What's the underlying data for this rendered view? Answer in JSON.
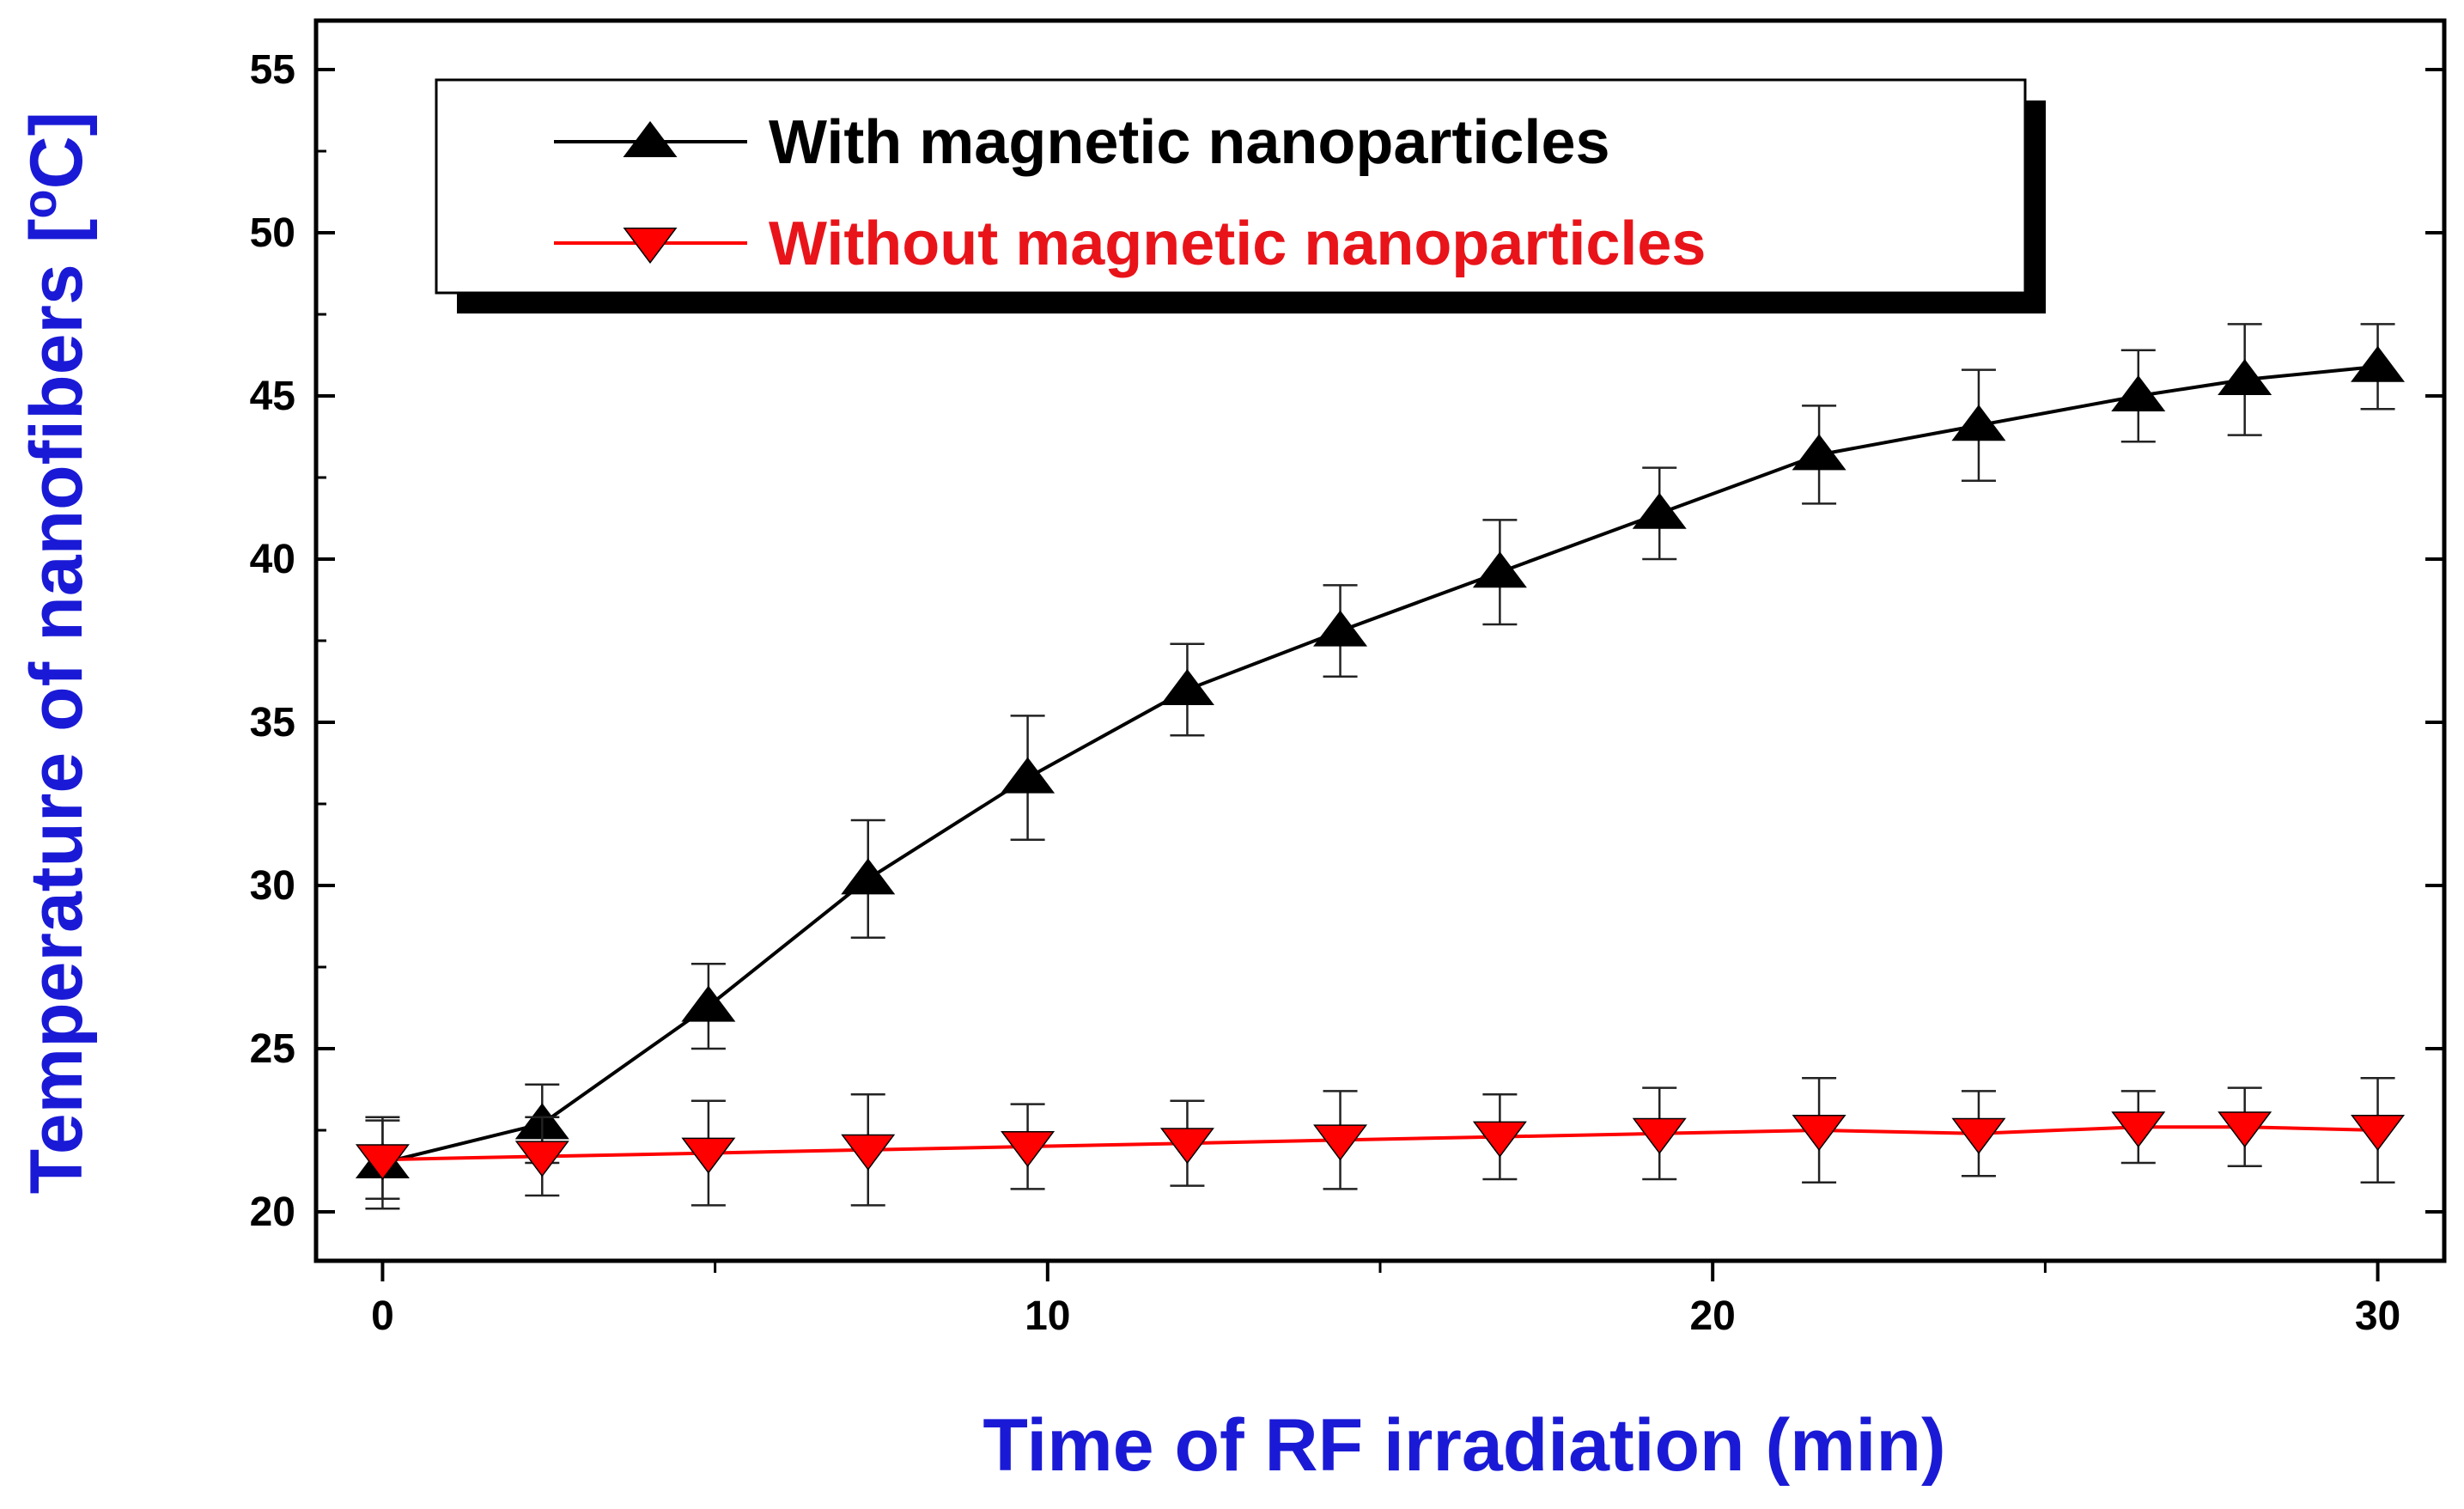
{
  "chart_data": {
    "type": "line",
    "xlabel": "Time of RF irradiation (min)",
    "ylabel_main": "Temperature of nanofibers [",
    "ylabel_sup": "o",
    "ylabel_end": "C]",
    "xlim": [
      -1,
      31
    ],
    "ylim": [
      18.5,
      56.5
    ],
    "xticks": [
      0,
      10,
      20,
      30
    ],
    "xticks_minor": [
      5,
      15,
      25
    ],
    "yticks": [
      20,
      25,
      30,
      35,
      40,
      45,
      50,
      55
    ],
    "series": [
      {
        "name": "With magnetic nanoparticles",
        "color": "#000000",
        "marker": "triangle-up",
        "x": [
          0,
          2.4,
          4.9,
          7.3,
          9.7,
          12.1,
          14.4,
          16.8,
          19.2,
          21.6,
          24.0,
          26.4,
          28.0,
          30.0
        ],
        "y": [
          21.5,
          22.7,
          26.3,
          30.2,
          33.3,
          36.0,
          37.8,
          39.6,
          41.4,
          43.2,
          44.1,
          45.0,
          45.5,
          45.9
        ],
        "err": [
          1.4,
          1.2,
          1.3,
          1.8,
          1.9,
          1.4,
          1.4,
          1.6,
          1.4,
          1.5,
          1.7,
          1.4,
          1.7,
          1.3
        ]
      },
      {
        "name": "Without magnetic nanoparticles",
        "color": "#ff0000",
        "marker": "triangle-down",
        "x": [
          0,
          2.4,
          4.9,
          7.3,
          9.7,
          12.1,
          14.4,
          16.8,
          19.2,
          21.6,
          24.0,
          26.4,
          28.0,
          30.0
        ],
        "y": [
          21.6,
          21.7,
          21.8,
          21.9,
          22.0,
          22.1,
          22.2,
          22.3,
          22.4,
          22.5,
          22.4,
          22.6,
          22.6,
          22.5
        ],
        "err": [
          1.2,
          1.2,
          1.6,
          1.7,
          1.3,
          1.3,
          1.5,
          1.3,
          1.4,
          1.6,
          1.3,
          1.1,
          1.2,
          1.6
        ]
      }
    ],
    "legend": {
      "position": "top-left",
      "entries": [
        {
          "label": "With magnetic nanoparticles",
          "color": "#000000"
        },
        {
          "label": "Without magnetic nanoparticles",
          "color": "#e8141a"
        }
      ]
    }
  }
}
